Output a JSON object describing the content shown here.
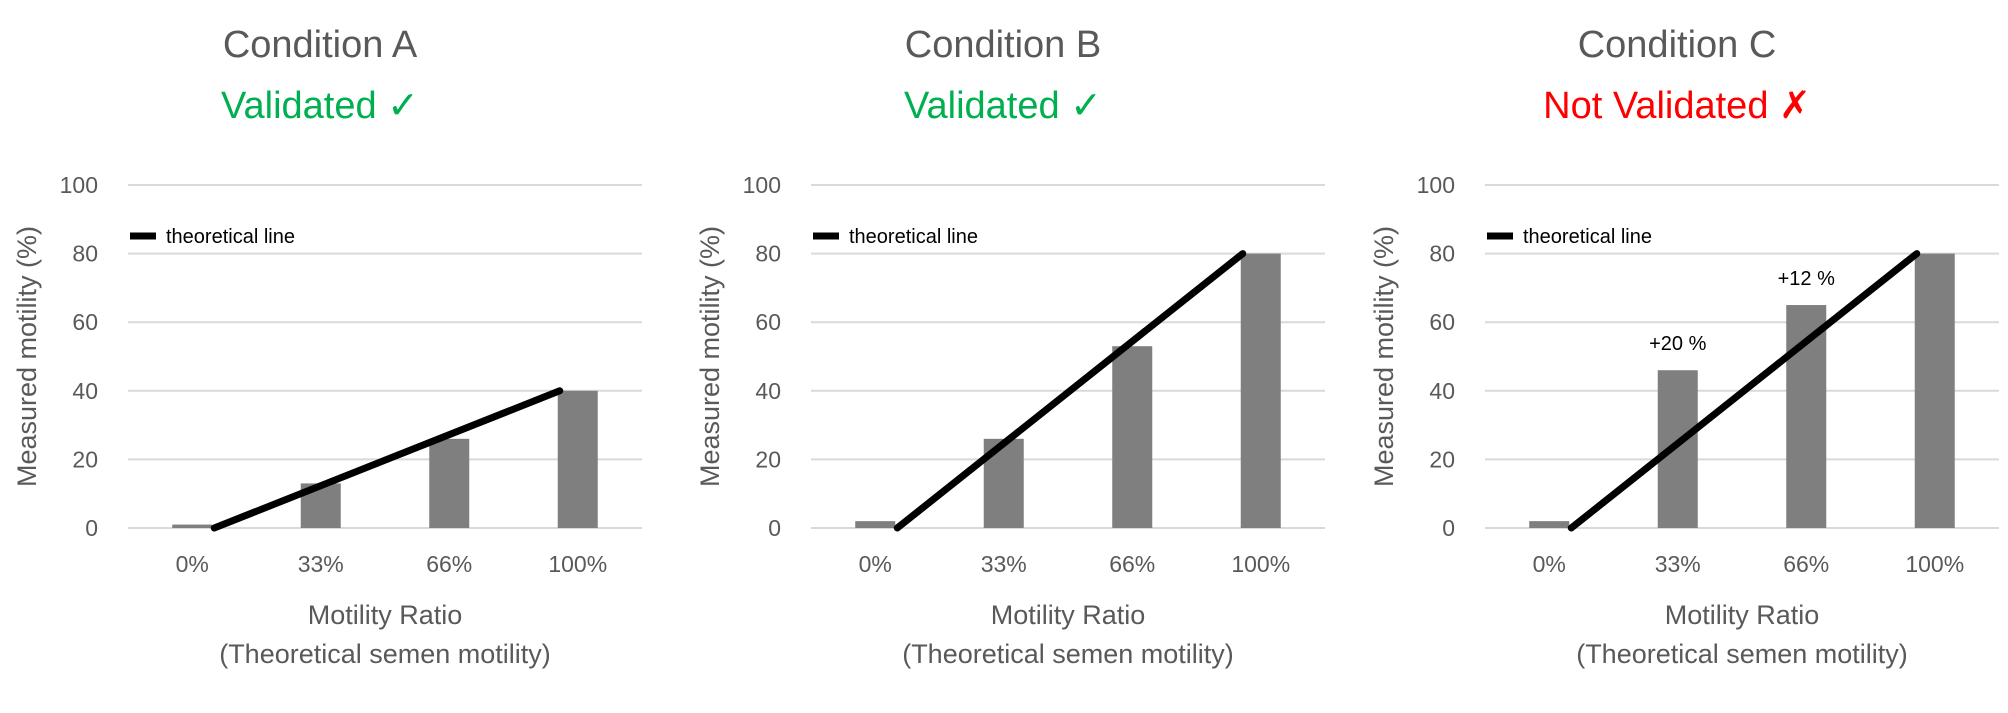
{
  "colors": {
    "title": "#595959",
    "validated": "#00b050",
    "not_validated": "#ff0000",
    "bar": "#7f7f7f",
    "theoretical_line": "#000000",
    "grid": "#d9d9d9",
    "tick_text": "#595959"
  },
  "chart_data": [
    {
      "type": "bar",
      "title": "Condition A",
      "subtitle": "Validated ✓",
      "status": "validated",
      "categories": [
        "0%",
        "33%",
        "66%",
        "100%"
      ],
      "values": [
        1,
        13,
        26,
        40
      ],
      "theoretical_line": {
        "label": "theoretical line",
        "start": 0,
        "end": 40
      },
      "annotations": [],
      "xlabel": "Motility Ratio",
      "xlabel2": "(Theoretical semen motility)",
      "ylabel": "Measured motility (%)",
      "ylim": [
        0,
        100
      ],
      "yticks": [
        "0",
        "20",
        "40",
        "60",
        "80",
        "100"
      ],
      "grid": true,
      "legend": "top-left"
    },
    {
      "type": "bar",
      "title": "Condition B",
      "subtitle": "Validated ✓",
      "status": "validated",
      "categories": [
        "0%",
        "33%",
        "66%",
        "100%"
      ],
      "values": [
        2,
        26,
        53,
        80
      ],
      "theoretical_line": {
        "label": "theoretical line",
        "start": 0,
        "end": 80
      },
      "annotations": [],
      "xlabel": "Motility Ratio",
      "xlabel2": "(Theoretical semen motility)",
      "ylabel": "Measured motility (%)",
      "ylim": [
        0,
        100
      ],
      "yticks": [
        "0",
        "20",
        "40",
        "60",
        "80",
        "100"
      ],
      "grid": true,
      "legend": "top-left"
    },
    {
      "type": "bar",
      "title": "Condition C",
      "subtitle": "Not Validated ✗",
      "status": "not_validated",
      "categories": [
        "0%",
        "33%",
        "66%",
        "100%"
      ],
      "values": [
        2,
        46,
        65,
        80
      ],
      "theoretical_line": {
        "label": "theoretical line",
        "start": 0,
        "end": 80
      },
      "annotations": [
        {
          "category": "33%",
          "text": "+20 %"
        },
        {
          "category": "66%",
          "text": "+12 %"
        }
      ],
      "xlabel": "Motility Ratio",
      "xlabel2": "(Theoretical semen motility)",
      "ylabel": "Measured motility (%)",
      "ylim": [
        0,
        100
      ],
      "yticks": [
        "0",
        "20",
        "40",
        "60",
        "80",
        "100"
      ],
      "grid": true,
      "legend": "top-left"
    }
  ]
}
